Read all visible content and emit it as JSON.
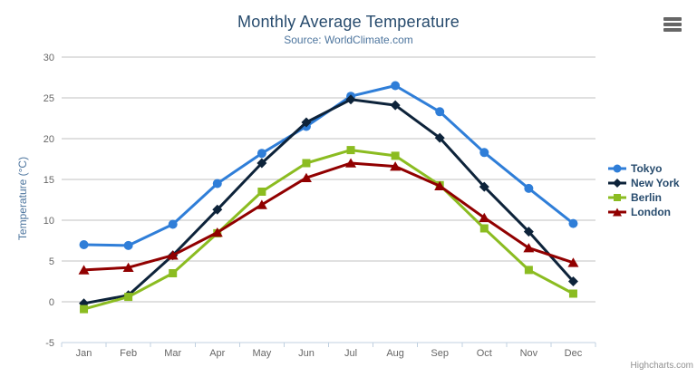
{
  "chart_data": {
    "type": "line",
    "title": "Monthly Average Temperature",
    "subtitle": "Source: WorldClimate.com",
    "xlabel": "",
    "ylabel": "Temperature (°C)",
    "categories": [
      "Jan",
      "Feb",
      "Mar",
      "Apr",
      "May",
      "Jun",
      "Jul",
      "Aug",
      "Sep",
      "Oct",
      "Nov",
      "Dec"
    ],
    "series": [
      {
        "name": "Tokyo",
        "color": "#2f7ed8",
        "marker": "circle",
        "values": [
          7.0,
          6.9,
          9.5,
          14.5,
          18.2,
          21.5,
          25.2,
          26.5,
          23.3,
          18.3,
          13.9,
          9.6
        ]
      },
      {
        "name": "New York",
        "color": "#0d233a",
        "marker": "diamond",
        "values": [
          -0.2,
          0.8,
          5.7,
          11.3,
          17.0,
          22.0,
          24.8,
          24.1,
          20.1,
          14.1,
          8.6,
          2.5
        ]
      },
      {
        "name": "Berlin",
        "color": "#8bbc21",
        "marker": "square",
        "values": [
          -0.9,
          0.6,
          3.5,
          8.4,
          13.5,
          17.0,
          18.6,
          17.9,
          14.3,
          9.0,
          3.9,
          1.0
        ]
      },
      {
        "name": "London",
        "color": "#910000",
        "marker": "triangle",
        "values": [
          3.9,
          4.2,
          5.7,
          8.5,
          11.9,
          15.2,
          17.0,
          16.6,
          14.2,
          10.3,
          6.6,
          4.8
        ]
      }
    ],
    "ylim": [
      -5,
      30
    ],
    "ytick_step": 5,
    "grid": true,
    "legend_position": "right"
  },
  "credits": {
    "label": "Highcharts.com"
  },
  "colors": {
    "title": "#274b6d",
    "subtitle": "#4d759e",
    "axis_label": "#666666",
    "grid_line": "#c0c0c0",
    "axis_line": "#c0d0e0",
    "legend_text": "#274b6d",
    "credits": "#909090",
    "menu_icon": "#666666"
  }
}
